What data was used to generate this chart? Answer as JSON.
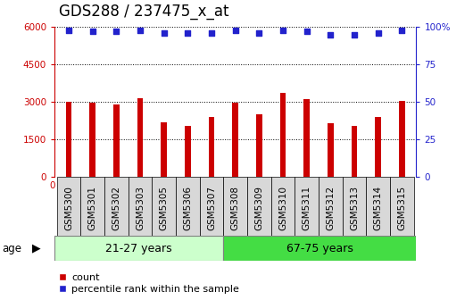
{
  "title": "GDS288 / 237475_x_at",
  "categories": [
    "GSM5300",
    "GSM5301",
    "GSM5302",
    "GSM5303",
    "GSM5305",
    "GSM5306",
    "GSM5307",
    "GSM5308",
    "GSM5309",
    "GSM5310",
    "GSM5311",
    "GSM5312",
    "GSM5313",
    "GSM5314",
    "GSM5315"
  ],
  "bar_values": [
    3020,
    2960,
    2890,
    3150,
    2200,
    2050,
    2400,
    2980,
    2500,
    3350,
    3100,
    2150,
    2050,
    2400,
    3030
  ],
  "percentile_values": [
    98,
    97,
    97,
    98,
    96,
    96,
    96,
    98,
    96,
    98,
    97,
    95,
    95,
    96,
    98
  ],
  "bar_color": "#cc0000",
  "dot_color": "#2222cc",
  "ylim_left": [
    0,
    6000
  ],
  "ylim_right": [
    0,
    100
  ],
  "yticks_left": [
    0,
    1500,
    3000,
    4500,
    6000
  ],
  "yticks_right": [
    0,
    25,
    50,
    75,
    100
  ],
  "group1_label": "21-27 years",
  "group2_label": "67-75 years",
  "group1_count": 7,
  "group2_count": 8,
  "age_label": "age",
  "legend_count": "count",
  "legend_percentile": "percentile rank within the sample",
  "plot_bg": "#ffffff",
  "xtick_bg": "#d8d8d8",
  "group1_color": "#ccffcc",
  "group2_color": "#44dd44",
  "grid_color": "#000000",
  "title_fontsize": 12,
  "tick_fontsize": 7.5,
  "bar_width": 0.25
}
